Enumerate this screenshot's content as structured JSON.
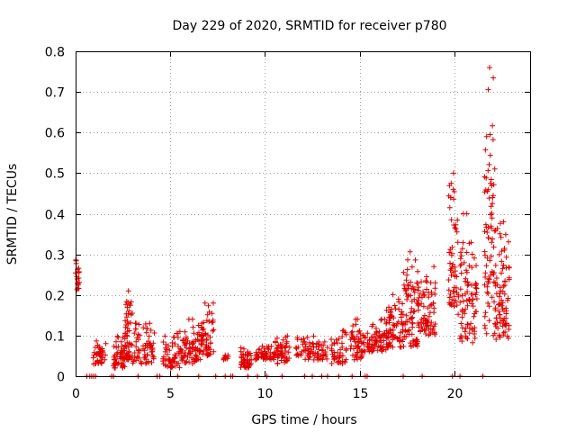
{
  "chart_data": {
    "type": "scatter",
    "title": "Day 229 of 2020, SRMTID for receiver p780",
    "xlabel": "GPS time / hours",
    "ylabel": "SRMTID / TECUs",
    "xlim": [
      0,
      24
    ],
    "ylim": [
      0,
      0.8
    ],
    "xticks": [
      "0",
      "5",
      "10",
      "15",
      "20"
    ],
    "yticks": [
      "0",
      "0.1",
      "0.2",
      "0.3",
      "0.4",
      "0.5",
      "0.6",
      "0.7",
      "0.8"
    ],
    "grid": true,
    "legend": "none",
    "marker": "plus",
    "color": "#e00000",
    "clusters": [
      {
        "x": [
          0.0,
          0.2
        ],
        "y": [
          0.21,
          0.3
        ],
        "n": 18
      },
      {
        "x": [
          0.9,
          1.6
        ],
        "y": [
          0.03,
          0.09
        ],
        "n": 45
      },
      {
        "x": [
          2.0,
          2.6
        ],
        "y": [
          0.02,
          0.1
        ],
        "n": 50
      },
      {
        "x": [
          2.6,
          3.0
        ],
        "y": [
          0.04,
          0.23
        ],
        "n": 55
      },
      {
        "x": [
          3.0,
          4.2
        ],
        "y": [
          0.03,
          0.13
        ],
        "n": 70
      },
      {
        "x": [
          4.6,
          5.6
        ],
        "y": [
          0.02,
          0.11
        ],
        "n": 60
      },
      {
        "x": [
          5.6,
          6.6
        ],
        "y": [
          0.03,
          0.14
        ],
        "n": 70
      },
      {
        "x": [
          6.6,
          7.3
        ],
        "y": [
          0.05,
          0.18
        ],
        "n": 60
      },
      {
        "x": [
          7.8,
          8.1
        ],
        "y": [
          0.04,
          0.06
        ],
        "n": 10
      },
      {
        "x": [
          8.7,
          9.3
        ],
        "y": [
          0.02,
          0.07
        ],
        "n": 45
      },
      {
        "x": [
          9.5,
          10.5
        ],
        "y": [
          0.04,
          0.08
        ],
        "n": 55
      },
      {
        "x": [
          10.5,
          11.3
        ],
        "y": [
          0.03,
          0.1
        ],
        "n": 50
      },
      {
        "x": [
          11.6,
          12.6
        ],
        "y": [
          0.04,
          0.11
        ],
        "n": 45
      },
      {
        "x": [
          12.6,
          13.3
        ],
        "y": [
          0.04,
          0.09
        ],
        "n": 30
      },
      {
        "x": [
          13.5,
          14.3
        ],
        "y": [
          0.03,
          0.12
        ],
        "n": 45
      },
      {
        "x": [
          14.5,
          15.3
        ],
        "y": [
          0.04,
          0.14
        ],
        "n": 55
      },
      {
        "x": [
          15.4,
          16.4
        ],
        "y": [
          0.06,
          0.14
        ],
        "n": 65
      },
      {
        "x": [
          16.4,
          17.3
        ],
        "y": [
          0.07,
          0.21
        ],
        "n": 75
      },
      {
        "x": [
          17.3,
          18.1
        ],
        "y": [
          0.07,
          0.31
        ],
        "n": 80
      },
      {
        "x": [
          18.1,
          19.0
        ],
        "y": [
          0.1,
          0.27
        ],
        "n": 70
      },
      {
        "x": [
          19.7,
          20.2
        ],
        "y": [
          0.17,
          0.5
        ],
        "n": 55
      },
      {
        "x": [
          20.2,
          21.2
        ],
        "y": [
          0.08,
          0.4
        ],
        "n": 90
      },
      {
        "x": [
          21.6,
          22.2
        ],
        "y": [
          0.1,
          0.76
        ],
        "n": 85
      },
      {
        "x": [
          22.2,
          22.9
        ],
        "y": [
          0.09,
          0.38
        ],
        "n": 80
      }
    ],
    "zero_points_x": [
      0.6,
      0.75,
      0.85,
      0.95,
      1.05,
      1.9,
      2.0,
      3.3,
      4.3,
      4.45,
      5.4,
      6.5,
      7.4,
      7.9,
      8.2,
      8.3,
      9.1,
      9.6,
      10.1,
      10.9,
      12.1,
      12.5,
      13.0,
      13.3,
      13.9,
      14.6,
      15.3,
      15.4,
      17.3,
      18.3,
      19.9,
      20.3,
      21.5
    ]
  }
}
